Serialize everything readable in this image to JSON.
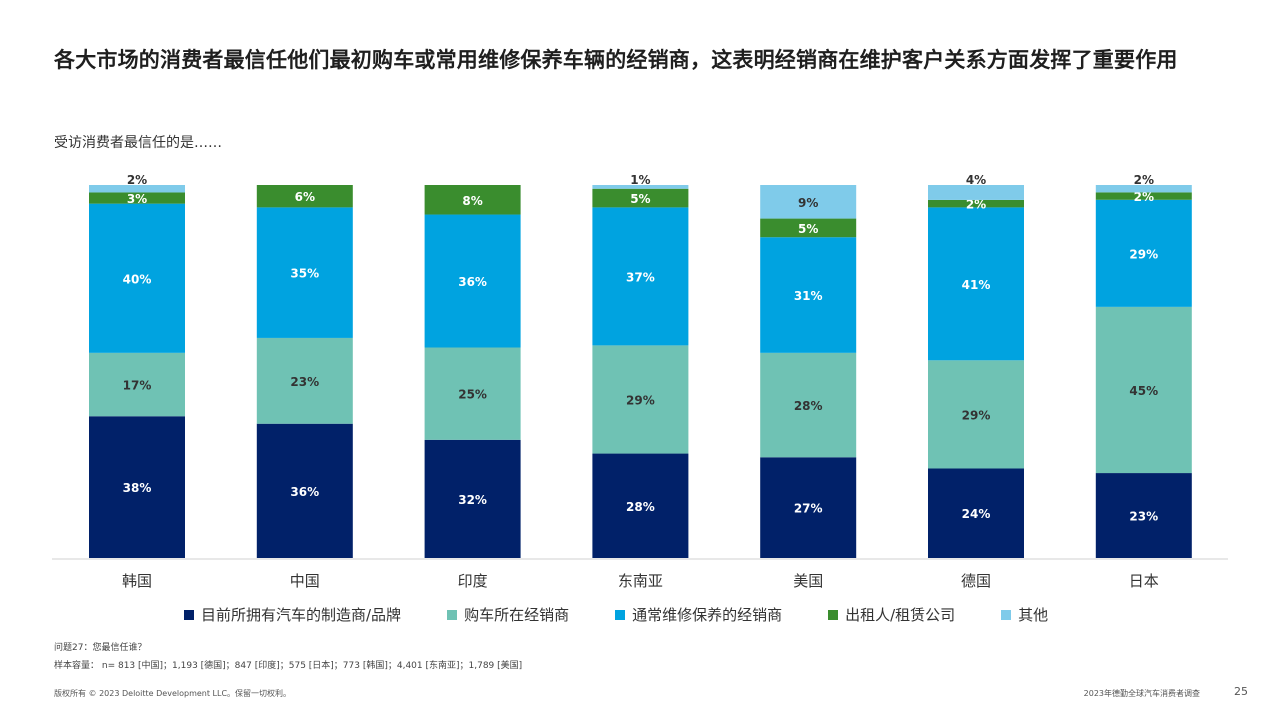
{
  "title": "各大市场的消费者最信任他们最初购车或常用维修保养车辆的经销商，这表明经销商在维护客户关系方面发挥了重要作用",
  "subtitle": "受访消费者最信任的是……",
  "chart_data": {
    "type": "bar",
    "stacked": true,
    "ylim": [
      0,
      100
    ],
    "categories": [
      "韩国",
      "中国",
      "印度",
      "东南亚",
      "美国",
      "德国",
      "日本"
    ],
    "series": [
      {
        "name": "目前所拥有汽车的制造商/品牌",
        "color": "#012169",
        "values": [
          38,
          36,
          32,
          28,
          27,
          24,
          23
        ],
        "label_color": "#ffffff"
      },
      {
        "name": "购车所在经销商",
        "color": "#6fc2b4",
        "values": [
          17,
          23,
          25,
          29,
          28,
          29,
          45
        ],
        "label_color": "#333333"
      },
      {
        "name": "通常维修保养的经销商",
        "color": "#00a3e0",
        "values": [
          40,
          35,
          36,
          37,
          31,
          41,
          29
        ],
        "label_color": "#ffffff"
      },
      {
        "name": "出租人/租赁公司",
        "color": "#3a8d2e",
        "values": [
          3,
          6,
          8,
          5,
          5,
          2,
          2
        ],
        "label_color": "#ffffff"
      },
      {
        "name": "其他",
        "color": "#7fcbea",
        "values": [
          2,
          0,
          0,
          1,
          9,
          4,
          2
        ],
        "label_color": "#333333"
      }
    ],
    "labels": [
      [
        "38%",
        "36%",
        "32%",
        "28%",
        "27%",
        "24%",
        "23%"
      ],
      [
        "17%",
        "23%",
        "25%",
        "29%",
        "28%",
        "29%",
        "45%"
      ],
      [
        "40%",
        "35%",
        "36%",
        "37%",
        "31%",
        "41%",
        "29%"
      ],
      [
        "3%",
        "6%",
        "8%",
        "5%",
        "5%",
        "2%",
        "2%"
      ],
      [
        "2%",
        "",
        "",
        "1%",
        "9%",
        "4%",
        "2%"
      ]
    ]
  },
  "notes": {
    "question": "问题27：您最信任谁？",
    "sample": "样本容量： n= 813 [中国]；1,193 [德国]；847 [印度]；575 [日本]；773 [韩国]；4,401 [东南亚]；1,789 [美国]"
  },
  "footer": {
    "copyright": "版权所有 © 2023 Deloitte Development LLC。保留一切权利。",
    "report": "2023年德勤全球汽车消费者调查",
    "page": "25"
  }
}
